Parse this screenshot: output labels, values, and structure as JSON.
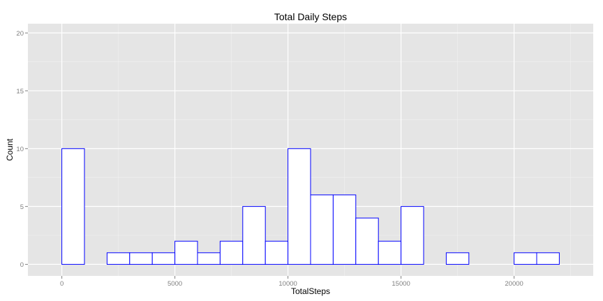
{
  "chart_data": {
    "type": "bar",
    "title": "Total Daily Steps",
    "xlabel": "TotalSteps",
    "ylabel": "Count",
    "xlim": [
      -1500,
      23500
    ],
    "ylim": [
      -1,
      20.8
    ],
    "x_ticks": [
      0,
      5000,
      10000,
      15000,
      20000
    ],
    "x_tick_labels": [
      "0",
      "5000",
      "10000",
      "15000",
      "20000"
    ],
    "y_ticks": [
      0,
      5,
      10,
      15,
      20
    ],
    "y_tick_labels": [
      "0",
      "5",
      "10",
      "15",
      "20"
    ],
    "grid": true,
    "legend": "none",
    "colors": {
      "panel_background": "#e5e5e5",
      "grid_major": "#ffffff",
      "grid_minor": "#f2f2f2",
      "bar_fill": "#ffffff",
      "bar_outline": "#0000ff",
      "tick_mark": "#7f7f7f"
    },
    "bins": [
      {
        "start": -1000,
        "end": 0,
        "count": 0
      },
      {
        "start": 0,
        "end": 1000,
        "count": 10
      },
      {
        "start": 1000,
        "end": 2000,
        "count": 0
      },
      {
        "start": 2000,
        "end": 3000,
        "count": 1
      },
      {
        "start": 3000,
        "end": 4000,
        "count": 1
      },
      {
        "start": 4000,
        "end": 5000,
        "count": 1
      },
      {
        "start": 5000,
        "end": 6000,
        "count": 2
      },
      {
        "start": 6000,
        "end": 7000,
        "count": 1
      },
      {
        "start": 7000,
        "end": 8000,
        "count": 2
      },
      {
        "start": 8000,
        "end": 9000,
        "count": 5
      },
      {
        "start": 9000,
        "end": 10000,
        "count": 2
      },
      {
        "start": 10000,
        "end": 11000,
        "count": 10
      },
      {
        "start": 11000,
        "end": 12000,
        "count": 6
      },
      {
        "start": 12000,
        "end": 13000,
        "count": 6
      },
      {
        "start": 13000,
        "end": 14000,
        "count": 4
      },
      {
        "start": 14000,
        "end": 15000,
        "count": 2
      },
      {
        "start": 15000,
        "end": 16000,
        "count": 5
      },
      {
        "start": 16000,
        "end": 17000,
        "count": 0
      },
      {
        "start": 17000,
        "end": 18000,
        "count": 1
      },
      {
        "start": 18000,
        "end": 19000,
        "count": 0
      },
      {
        "start": 19000,
        "end": 20000,
        "count": 0
      },
      {
        "start": 20000,
        "end": 21000,
        "count": 1
      },
      {
        "start": 21000,
        "end": 22000,
        "count": 1
      },
      {
        "start": 22000,
        "end": 23000,
        "count": 0
      }
    ]
  }
}
